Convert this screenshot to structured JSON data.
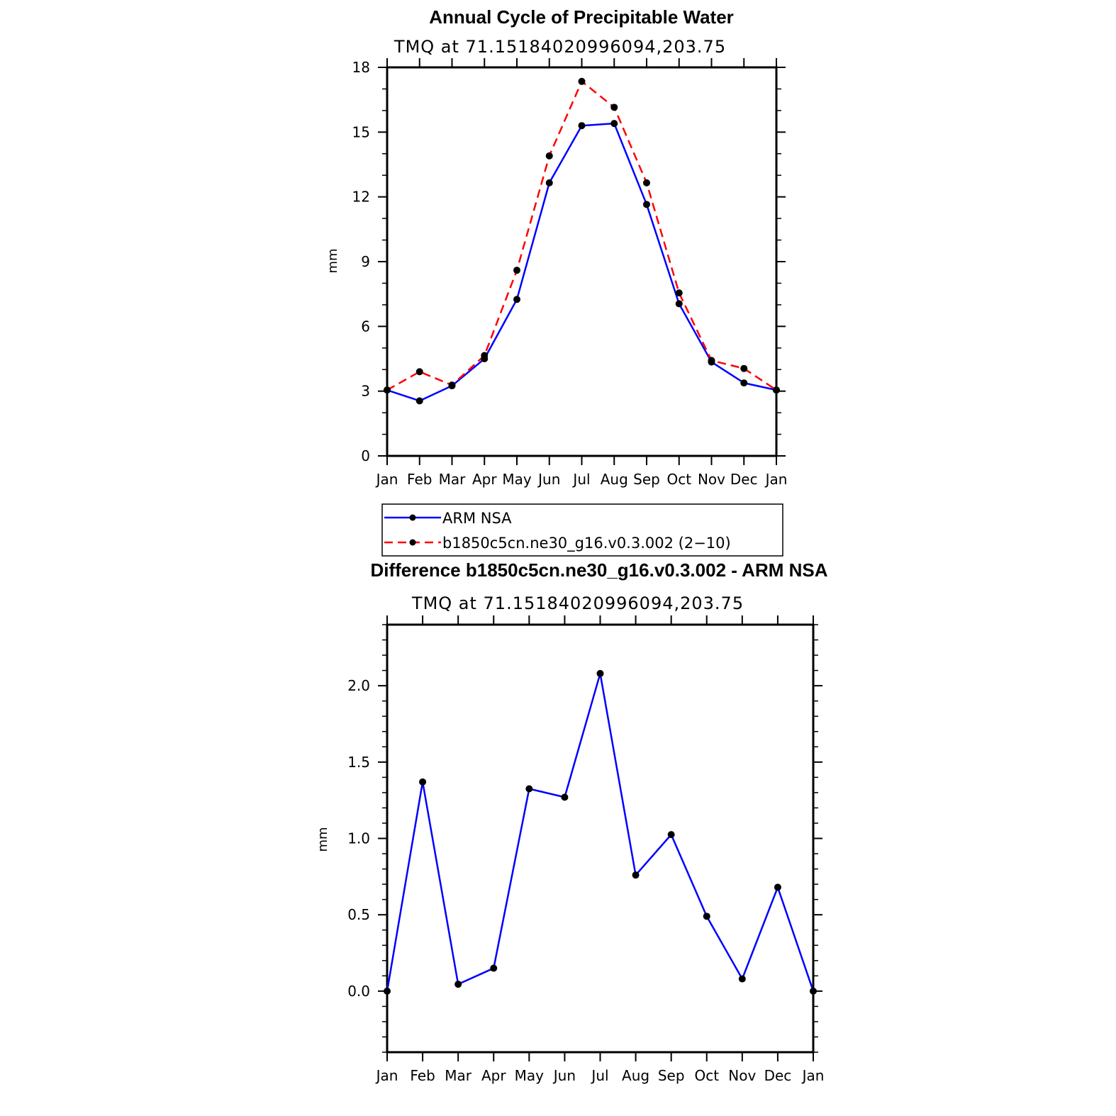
{
  "chart_data": [
    {
      "type": "line",
      "title": "Annual Cycle of Precipitable Water",
      "subtitle": "TMQ at 71.15184020996094,203.75",
      "xlabel": "",
      "ylabel": "mm",
      "categories": [
        "Jan",
        "Feb",
        "Mar",
        "Apr",
        "May",
        "Jun",
        "Jul",
        "Aug",
        "Sep",
        "Oct",
        "Nov",
        "Dec",
        "Jan"
      ],
      "ylim": [
        0,
        18
      ],
      "yticks": [
        0,
        3,
        6,
        9,
        12,
        15,
        18
      ],
      "ytick_labels": [
        "0",
        "3",
        "6",
        "9",
        "12",
        "15",
        "18"
      ],
      "series": [
        {
          "name": "ARM NSA",
          "color": "#0000ff",
          "dash": "solid",
          "values": [
            3.05,
            2.55,
            3.25,
            4.5,
            7.25,
            12.65,
            15.3,
            15.4,
            11.65,
            7.05,
            4.35,
            3.38,
            3.05
          ]
        },
        {
          "name": "b1850c5cn.ne30_g16.v0.3.002 (2−10)",
          "color": "#ff0000",
          "dash": "dashed",
          "values": [
            3.05,
            3.9,
            3.28,
            4.65,
            8.6,
            13.9,
            17.35,
            16.15,
            12.65,
            7.55,
            4.42,
            4.05,
            3.05
          ]
        }
      ],
      "legend": {
        "position": "bottom-center",
        "entries": [
          "ARM NSA",
          "b1850c5cn.ne30_g16.v0.3.002 (2−10)"
        ]
      }
    },
    {
      "type": "line",
      "title": "Difference b1850c5cn.ne30_g16.v0.3.002 - ARM NSA",
      "subtitle": "TMQ at 71.15184020996094,203.75",
      "xlabel": "",
      "ylabel": "mm",
      "categories": [
        "Jan",
        "Feb",
        "Mar",
        "Apr",
        "May",
        "Jun",
        "Jul",
        "Aug",
        "Sep",
        "Oct",
        "Nov",
        "Dec",
        "Jan"
      ],
      "ylim": [
        -0.4,
        2.4
      ],
      "yticks": [
        0.0,
        0.5,
        1.0,
        1.5,
        2.0
      ],
      "ytick_labels": [
        "0.0",
        "0.5",
        "1.0",
        "1.5",
        "2.0"
      ],
      "series": [
        {
          "name": "Difference",
          "color": "#0000ff",
          "dash": "solid",
          "values": [
            0.0,
            1.37,
            0.045,
            0.15,
            1.325,
            1.27,
            2.08,
            0.76,
            1.025,
            0.49,
            0.08,
            0.68,
            0.0
          ]
        }
      ]
    }
  ]
}
